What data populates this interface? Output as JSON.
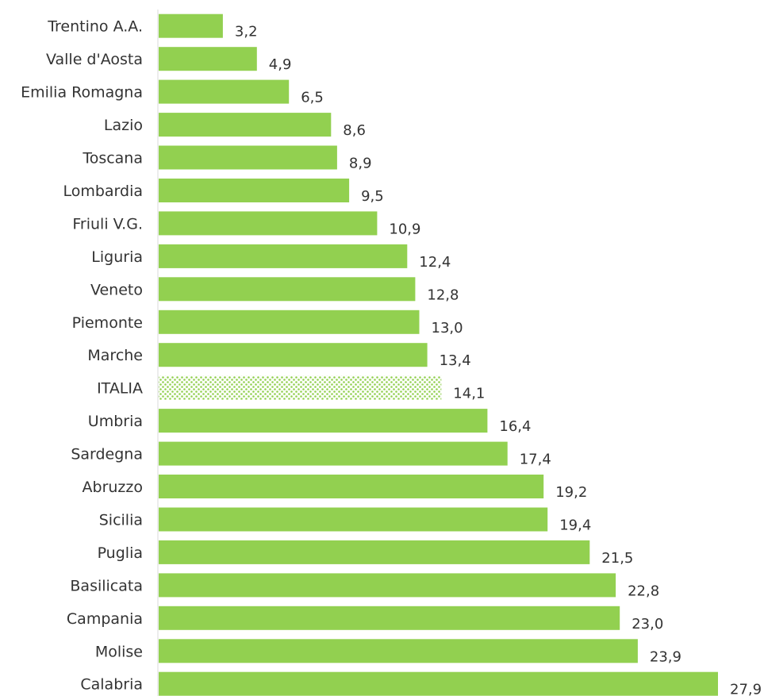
{
  "chart_data": {
    "type": "bar",
    "orientation": "horizontal",
    "categories": [
      "Trentino A.A.",
      "Valle d'Aosta",
      "Emilia Romagna",
      "Lazio",
      "Toscana",
      "Lombardia",
      "Friuli V.G.",
      "Liguria",
      "Veneto",
      "Piemonte",
      "Marche",
      "ITALIA",
      "Umbria",
      "Sardegna",
      "Abruzzo",
      "Sicilia",
      "Puglia",
      "Basilicata",
      "Campania",
      "Molise",
      "Calabria"
    ],
    "values": [
      3.2,
      4.9,
      6.5,
      8.6,
      8.9,
      9.5,
      10.9,
      12.4,
      12.8,
      13.0,
      13.4,
      14.1,
      16.4,
      17.4,
      19.2,
      19.4,
      21.5,
      22.8,
      23.0,
      23.9,
      27.9
    ],
    "value_labels": [
      "3,2",
      "4,9",
      "6,5",
      "8,6",
      "8,9",
      "9,5",
      "10,9",
      "12,4",
      "12,8",
      "13,0",
      "13,4",
      "14,1",
      "16,4",
      "17,4",
      "19,2",
      "19,4",
      "21,5",
      "22,8",
      "23,0",
      "23,9",
      "27,9"
    ],
    "highlight_category": "ITALIA",
    "xlim": [
      0,
      28
    ],
    "grid": false,
    "legend": "none",
    "colors": {
      "bar": "#92d050",
      "highlight_pattern_fg": "#92d050",
      "highlight_pattern_bg": "#ffffff",
      "axis": "#d9d9d9",
      "text": "#333333"
    }
  }
}
